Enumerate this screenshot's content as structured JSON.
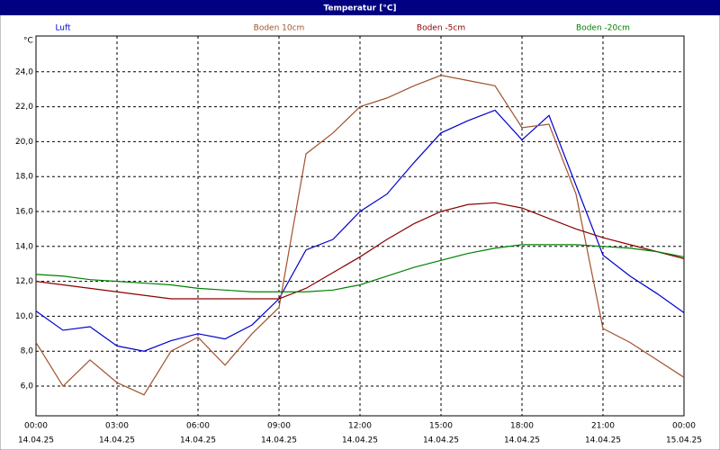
{
  "chart_data": {
    "type": "line",
    "title": "Temperatur [°C]",
    "y_unit": "°C",
    "x": [
      0,
      1,
      2,
      3,
      4,
      5,
      6,
      7,
      8,
      9,
      10,
      11,
      12,
      13,
      14,
      15,
      16,
      17,
      18,
      19,
      20,
      21,
      22,
      23,
      24
    ],
    "series": [
      {
        "name": "Luft",
        "color": "#0000cc",
        "values": [
          10.3,
          9.2,
          9.4,
          8.3,
          8.0,
          8.6,
          9.0,
          8.7,
          9.5,
          11.0,
          13.8,
          14.4,
          16.0,
          17.0,
          18.8,
          20.5,
          21.2,
          21.8,
          20.1,
          21.5,
          17.5,
          13.5,
          12.3,
          11.3,
          10.2
        ]
      },
      {
        "name": "Boden 10cm",
        "color": "#a0522d",
        "values": [
          8.5,
          6.0,
          7.5,
          6.2,
          5.5,
          8.0,
          8.8,
          7.2,
          9.0,
          10.5,
          19.3,
          20.5,
          22.0,
          22.5,
          23.2,
          23.8,
          23.5,
          23.2,
          20.8,
          21.0,
          17.0,
          9.3,
          8.5,
          7.5,
          6.5
        ]
      },
      {
        "name": "Boden -5cm",
        "color": "#8b0000",
        "values": [
          12.0,
          11.8,
          11.6,
          11.4,
          11.2,
          11.0,
          11.0,
          11.0,
          11.0,
          11.0,
          11.6,
          12.5,
          13.4,
          14.4,
          15.3,
          16.0,
          16.4,
          16.5,
          16.2,
          15.6,
          15.0,
          14.5,
          14.1,
          13.7,
          13.3
        ]
      },
      {
        "name": "Boden -20cm",
        "color": "#008000",
        "values": [
          12.4,
          12.3,
          12.1,
          12.0,
          11.9,
          11.8,
          11.6,
          11.5,
          11.4,
          11.4,
          11.4,
          11.5,
          11.8,
          12.3,
          12.8,
          13.2,
          13.6,
          13.9,
          14.1,
          14.1,
          14.1,
          14.0,
          13.9,
          13.7,
          13.4
        ]
      }
    ],
    "xlim": [
      0,
      24
    ],
    "xticks": [
      {
        "value": 0,
        "label": "00:00"
      },
      {
        "value": 3,
        "label": "03:00"
      },
      {
        "value": 6,
        "label": "06:00"
      },
      {
        "value": 9,
        "label": "09:00"
      },
      {
        "value": 12,
        "label": "12:00"
      },
      {
        "value": 15,
        "label": "15:00"
      },
      {
        "value": 18,
        "label": "18:00"
      },
      {
        "value": 21,
        "label": "21:00"
      },
      {
        "value": 24,
        "label": "00:00"
      }
    ],
    "xtick_dates": [
      "14.04.25",
      "14.04.25",
      "14.04.25",
      "14.04.25",
      "14.04.25",
      "14.04.25",
      "14.04.25",
      "14.04.25",
      "15.04.25"
    ],
    "ylim": [
      4.3,
      26.05
    ],
    "yticks": [
      {
        "value": 6,
        "label": "6,0"
      },
      {
        "value": 8,
        "label": "8,0"
      },
      {
        "value": 10,
        "label": "10,0"
      },
      {
        "value": 12,
        "label": "12,0"
      },
      {
        "value": 14,
        "label": "14,0"
      },
      {
        "value": 16,
        "label": "16,0"
      },
      {
        "value": 18,
        "label": "18,0"
      },
      {
        "value": 20,
        "label": "20,0"
      },
      {
        "value": 22,
        "label": "22,0"
      },
      {
        "value": 24,
        "label": "24,0"
      }
    ],
    "grid": true
  }
}
